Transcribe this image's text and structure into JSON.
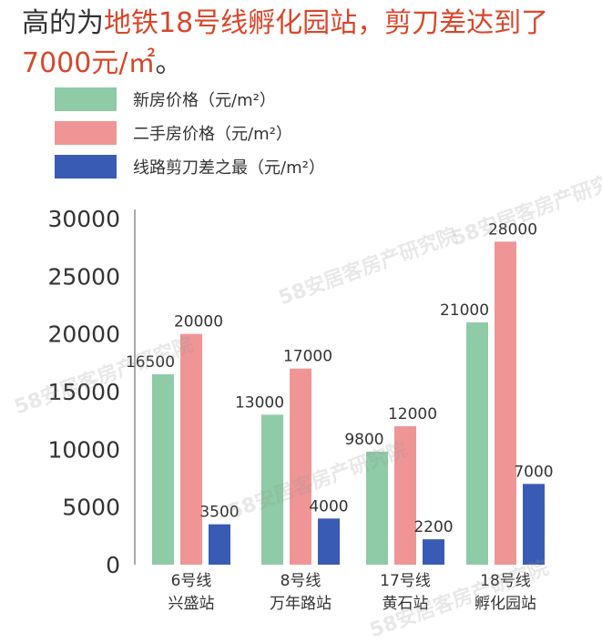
{
  "headline": {
    "prefix": "高的为",
    "highlight_line1": "地铁18号线孵化园站，剪刀差达到了",
    "highlight_line2": "7000元/㎡",
    "suffix": "。"
  },
  "watermark_text": "58安居客房产研究院",
  "colors": {
    "new_house": "#8ecba6",
    "second_hand": "#ef9596",
    "spread": "#3a5bb4",
    "highlight_text": "#d9472b"
  },
  "chart_data": {
    "type": "bar",
    "categories": [
      {
        "line1": "6号线",
        "line2": "兴盛站"
      },
      {
        "line1": "8号线",
        "line2": "万年路站"
      },
      {
        "line1": "17号线",
        "line2": "黄石站"
      },
      {
        "line1": "18号线",
        "line2": "孵化园站"
      }
    ],
    "series": [
      {
        "name": "新房价格（元/m²）",
        "color": "#8ecba6",
        "values": [
          16500,
          13000,
          9800,
          21000
        ],
        "labels": [
          "16500",
          "13000",
          "9800",
          "21000"
        ]
      },
      {
        "name": "二手房价格（元/m²）",
        "color": "#ef9596",
        "values": [
          20000,
          17000,
          12000,
          28000
        ],
        "labels": [
          "20000",
          "17000",
          "12000",
          "28000"
        ]
      },
      {
        "name": "线路剪刀差之最（元/m²）",
        "color": "#3a5bb4",
        "values": [
          3500,
          4000,
          2200,
          7000
        ],
        "labels": [
          "3500",
          "4000",
          "2200",
          "7000"
        ]
      }
    ],
    "yticks": [
      "0",
      "5000",
      "10000",
      "15000",
      "20000",
      "25000",
      "30000"
    ],
    "ylim": [
      0,
      30000
    ],
    "legend_position": "top-left",
    "grid": false
  }
}
